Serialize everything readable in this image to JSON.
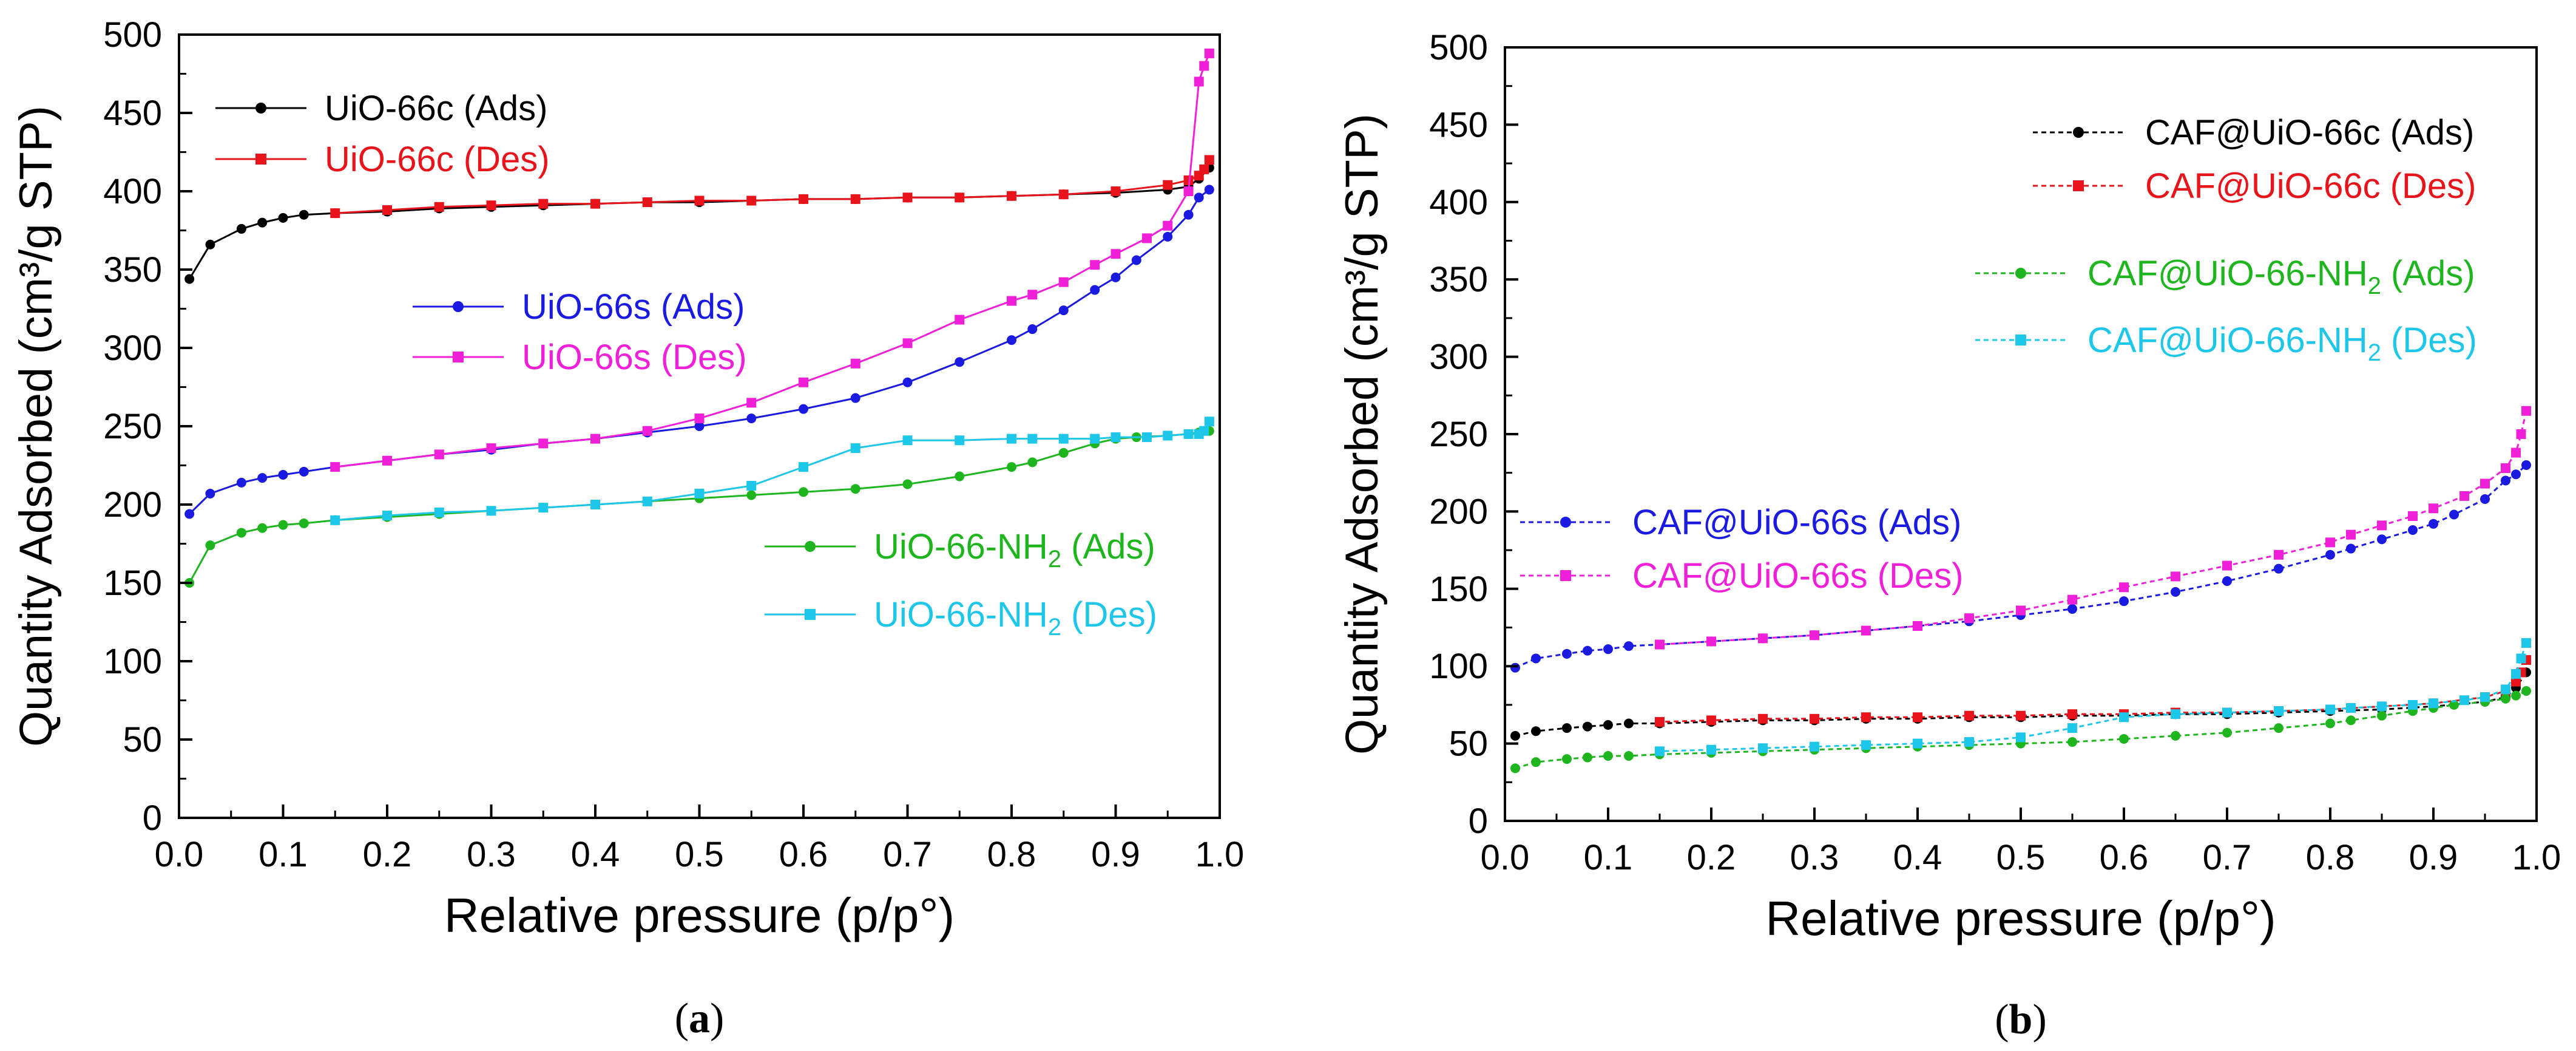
{
  "chart_data": [
    {
      "type": "line",
      "panel_label": "(a)",
      "panel_letter": "a",
      "xlabel": "Relative pressure (p/p°)",
      "ylabel": "Quantity Adsorbed (cm³/g STP)",
      "xlim": [
        0.0,
        1.0
      ],
      "ylim": [
        0,
        500
      ],
      "xticks": [
        "0.0",
        "0.1",
        "0.2",
        "0.3",
        "0.4",
        "0.5",
        "0.6",
        "0.7",
        "0.8",
        "0.9",
        "1.0"
      ],
      "yticks": [
        "0",
        "50",
        "100",
        "150",
        "200",
        "250",
        "300",
        "350",
        "400",
        "450",
        "500"
      ],
      "grid": false,
      "legend": "inline",
      "series": [
        {
          "name": "UiO-66c (Ads)",
          "color": "#000000",
          "marker": "circle",
          "line": "solid",
          "x": [
            0.01,
            0.03,
            0.06,
            0.08,
            0.1,
            0.12,
            0.15,
            0.2,
            0.25,
            0.3,
            0.35,
            0.4,
            0.45,
            0.5,
            0.55,
            0.6,
            0.65,
            0.7,
            0.75,
            0.8,
            0.85,
            0.9,
            0.95,
            0.97,
            0.98,
            0.99
          ],
          "y": [
            344,
            366,
            376,
            380,
            383,
            385,
            386,
            387,
            389,
            390,
            391,
            392,
            393,
            393,
            394,
            395,
            395,
            396,
            396,
            397,
            398,
            399,
            401,
            403,
            408,
            415
          ]
        },
        {
          "name": "UiO-66c (Des)",
          "color": "#e8141b",
          "marker": "square",
          "line": "solid",
          "x": [
            0.99,
            0.985,
            0.98,
            0.97,
            0.95,
            0.9,
            0.85,
            0.8,
            0.75,
            0.7,
            0.65,
            0.6,
            0.55,
            0.5,
            0.45,
            0.4,
            0.35,
            0.3,
            0.25,
            0.2,
            0.15
          ],
          "y": [
            420,
            414,
            410,
            407,
            404,
            400,
            398,
            397,
            396,
            396,
            395,
            395,
            394,
            394,
            393,
            392,
            392,
            391,
            390,
            388,
            386
          ]
        },
        {
          "name": "UiO-66s (Ads)",
          "color": "#1a1ae0",
          "marker": "circle",
          "line": "solid",
          "x": [
            0.01,
            0.03,
            0.06,
            0.08,
            0.1,
            0.12,
            0.15,
            0.2,
            0.25,
            0.3,
            0.35,
            0.4,
            0.45,
            0.5,
            0.55,
            0.6,
            0.65,
            0.7,
            0.75,
            0.8,
            0.82,
            0.85,
            0.88,
            0.9,
            0.92,
            0.95,
            0.97,
            0.98,
            0.99
          ],
          "y": [
            194,
            207,
            214,
            217,
            219,
            221,
            224,
            228,
            232,
            235,
            239,
            242,
            246,
            250,
            255,
            261,
            268,
            278,
            291,
            305,
            312,
            324,
            337,
            345,
            356,
            371,
            385,
            396,
            401
          ]
        },
        {
          "name": "UiO-66s (Des)",
          "color": "#f020d8",
          "marker": "square",
          "line": "solid",
          "x": [
            0.99,
            0.985,
            0.98,
            0.97,
            0.95,
            0.93,
            0.9,
            0.88,
            0.85,
            0.82,
            0.8,
            0.75,
            0.7,
            0.65,
            0.6,
            0.55,
            0.5,
            0.45,
            0.4,
            0.35,
            0.3,
            0.25,
            0.2,
            0.15
          ],
          "y": [
            488,
            480,
            470,
            400,
            378,
            370,
            360,
            353,
            342,
            334,
            330,
            318,
            303,
            290,
            278,
            265,
            255,
            247,
            242,
            239,
            236,
            232,
            228,
            224
          ]
        },
        {
          "name": "UiO-66-NH₂ (Ads)",
          "color": "#1fb51f",
          "marker": "circle",
          "line": "solid",
          "x": [
            0.01,
            0.03,
            0.06,
            0.08,
            0.1,
            0.12,
            0.15,
            0.2,
            0.25,
            0.3,
            0.35,
            0.4,
            0.45,
            0.5,
            0.55,
            0.6,
            0.65,
            0.7,
            0.75,
            0.8,
            0.82,
            0.85,
            0.88,
            0.9,
            0.92,
            0.95,
            0.97,
            0.98,
            0.99
          ],
          "y": [
            150,
            174,
            182,
            185,
            187,
            188,
            190,
            192,
            194,
            196,
            198,
            200,
            202,
            204,
            206,
            208,
            210,
            213,
            218,
            224,
            227,
            233,
            239,
            242,
            243,
            244,
            245,
            246,
            247
          ]
        },
        {
          "name": "UiO-66-NH₂ (Des)",
          "color": "#1ec6e8",
          "marker": "square",
          "line": "solid",
          "x": [
            0.99,
            0.985,
            0.98,
            0.97,
            0.95,
            0.93,
            0.9,
            0.88,
            0.85,
            0.82,
            0.8,
            0.75,
            0.7,
            0.65,
            0.6,
            0.55,
            0.5,
            0.45,
            0.4,
            0.35,
            0.3,
            0.25,
            0.2,
            0.15
          ],
          "y": [
            253,
            247,
            245,
            245,
            244,
            243,
            243,
            242,
            242,
            242,
            242,
            241,
            241,
            236,
            224,
            212,
            207,
            202,
            200,
            198,
            196,
            195,
            193,
            190
          ]
        }
      ],
      "legend_items": [
        {
          "label_main": "UiO-66c (Ads)",
          "label_sub": "",
          "label_tail": "",
          "color": "#000000",
          "marker": "circle",
          "text_color": "#000000"
        },
        {
          "label_main": "UiO-66c (Des)",
          "label_sub": "",
          "label_tail": "",
          "color": "#e8141b",
          "marker": "square",
          "text_color": "#e8141b"
        },
        {
          "label_main": "UiO-66s (Ads)",
          "label_sub": "",
          "label_tail": "",
          "color": "#1a1ae0",
          "marker": "circle",
          "text_color": "#1a1ae0"
        },
        {
          "label_main": "UiO-66s (Des)",
          "label_sub": "",
          "label_tail": "",
          "color": "#f020d8",
          "marker": "square",
          "text_color": "#f020d8"
        },
        {
          "label_main": "UiO-66-NH",
          "label_sub": "2",
          "label_tail": " (Ads)",
          "color": "#1fb51f",
          "marker": "circle",
          "text_color": "#1fb51f"
        },
        {
          "label_main": "UiO-66-NH",
          "label_sub": "2",
          "label_tail": " (Des)",
          "color": "#1ec6e8",
          "marker": "square",
          "text_color": "#1ec6e8"
        }
      ]
    },
    {
      "type": "line",
      "panel_label": "(b)",
      "panel_letter": "b",
      "xlabel": "Relative pressure (p/p°)",
      "ylabel": "Quantity Adsorbed (cm³/g STP)",
      "xlim": [
        0.0,
        1.0
      ],
      "ylim": [
        0,
        500
      ],
      "xticks": [
        "0.0",
        "0.1",
        "0.2",
        "0.3",
        "0.4",
        "0.5",
        "0.6",
        "0.7",
        "0.8",
        "0.9",
        "1.0"
      ],
      "yticks": [
        "0",
        "50",
        "100",
        "150",
        "200",
        "250",
        "300",
        "350",
        "400",
        "450",
        "500"
      ],
      "grid": false,
      "legend": "inline",
      "series": [
        {
          "name": "CAF@UiO-66c (Ads)",
          "color": "#000000",
          "marker": "circle",
          "line": "dashed",
          "x": [
            0.01,
            0.03,
            0.06,
            0.08,
            0.1,
            0.12,
            0.15,
            0.2,
            0.25,
            0.3,
            0.35,
            0.4,
            0.45,
            0.5,
            0.55,
            0.6,
            0.65,
            0.7,
            0.75,
            0.8,
            0.85,
            0.9,
            0.95,
            0.97,
            0.98,
            0.99
          ],
          "y": [
            55,
            58,
            60,
            61,
            62,
            63,
            63,
            64,
            65,
            65,
            66,
            66,
            67,
            67,
            68,
            68,
            69,
            69,
            70,
            71,
            72,
            74,
            77,
            80,
            86,
            96
          ]
        },
        {
          "name": "CAF@UiO-66c (Des)",
          "color": "#e8141b",
          "marker": "square",
          "line": "dashed",
          "x": [
            0.99,
            0.985,
            0.98,
            0.97,
            0.95,
            0.9,
            0.85,
            0.8,
            0.75,
            0.7,
            0.65,
            0.6,
            0.55,
            0.5,
            0.45,
            0.4,
            0.35,
            0.3,
            0.25,
            0.2,
            0.15
          ],
          "y": [
            104,
            96,
            90,
            84,
            80,
            76,
            74,
            72,
            71,
            70,
            70,
            69,
            69,
            68,
            68,
            67,
            67,
            66,
            66,
            65,
            64
          ]
        },
        {
          "name": "CAF@UiO-66s (Ads)",
          "color": "#1a1ae0",
          "marker": "circle",
          "line": "dashed",
          "x": [
            0.01,
            0.03,
            0.06,
            0.08,
            0.1,
            0.12,
            0.15,
            0.2,
            0.25,
            0.3,
            0.35,
            0.4,
            0.45,
            0.5,
            0.55,
            0.6,
            0.65,
            0.7,
            0.75,
            0.8,
            0.82,
            0.85,
            0.88,
            0.9,
            0.92,
            0.95,
            0.97,
            0.98,
            0.99
          ],
          "y": [
            99,
            105,
            108,
            110,
            111,
            113,
            114,
            116,
            118,
            120,
            123,
            126,
            129,
            133,
            137,
            142,
            148,
            155,
            163,
            172,
            176,
            182,
            188,
            192,
            198,
            208,
            220,
            224,
            230
          ]
        },
        {
          "name": "CAF@UiO-66s (Des)",
          "color": "#f020d8",
          "marker": "square",
          "line": "dashed",
          "x": [
            0.99,
            0.985,
            0.98,
            0.97,
            0.95,
            0.93,
            0.9,
            0.88,
            0.85,
            0.82,
            0.8,
            0.75,
            0.7,
            0.65,
            0.6,
            0.55,
            0.5,
            0.45,
            0.4,
            0.35,
            0.3,
            0.25,
            0.2,
            0.15
          ],
          "y": [
            265,
            250,
            238,
            228,
            218,
            210,
            202,
            197,
            191,
            185,
            180,
            172,
            165,
            158,
            151,
            143,
            136,
            131,
            126,
            123,
            120,
            118,
            116,
            114
          ]
        },
        {
          "name": "CAF@UiO-66-NH₂ (Ads)",
          "color": "#1fb51f",
          "marker": "circle",
          "line": "dashed",
          "x": [
            0.01,
            0.03,
            0.06,
            0.08,
            0.1,
            0.12,
            0.15,
            0.2,
            0.25,
            0.3,
            0.35,
            0.4,
            0.45,
            0.5,
            0.55,
            0.6,
            0.65,
            0.7,
            0.75,
            0.8,
            0.82,
            0.85,
            0.88,
            0.9,
            0.92,
            0.95,
            0.97,
            0.98,
            0.99
          ],
          "y": [
            34,
            38,
            40,
            41,
            42,
            42,
            43,
            44,
            45,
            46,
            47,
            48,
            49,
            50,
            51,
            53,
            55,
            57,
            60,
            63,
            65,
            68,
            71,
            73,
            75,
            77,
            79,
            81,
            84
          ]
        },
        {
          "name": "CAF@UiO-66-NH₂ (Des)",
          "color": "#1ec6e8",
          "marker": "square",
          "line": "dashed",
          "x": [
            0.99,
            0.985,
            0.98,
            0.97,
            0.95,
            0.93,
            0.9,
            0.88,
            0.85,
            0.82,
            0.8,
            0.75,
            0.7,
            0.65,
            0.6,
            0.55,
            0.5,
            0.45,
            0.4,
            0.35,
            0.3,
            0.25,
            0.2,
            0.15
          ],
          "y": [
            115,
            105,
            95,
            85,
            80,
            78,
            76,
            75,
            74,
            73,
            72,
            71,
            70,
            69,
            67,
            60,
            54,
            51,
            50,
            49,
            48,
            47,
            46,
            45
          ]
        }
      ],
      "legend_items": [
        {
          "label_main": "CAF@UiO-66c (Ads)",
          "label_sub": "",
          "label_tail": "",
          "color": "#000000",
          "marker": "circle",
          "text_color": "#000000"
        },
        {
          "label_main": "CAF@UiO-66c (Des)",
          "label_sub": "",
          "label_tail": "",
          "color": "#e8141b",
          "marker": "square",
          "text_color": "#e8141b"
        },
        {
          "label_main": "CAF@UiO-66-NH",
          "label_sub": "2",
          "label_tail": " (Ads)",
          "color": "#1fb51f",
          "marker": "circle",
          "text_color": "#1fb51f"
        },
        {
          "label_main": "CAF@UiO-66-NH",
          "label_sub": "2",
          "label_tail": " (Des)",
          "color": "#1ec6e8",
          "marker": "square",
          "text_color": "#1ec6e8"
        },
        {
          "label_main": "CAF@UiO-66s (Ads)",
          "label_sub": "",
          "label_tail": "",
          "color": "#1a1ae0",
          "marker": "circle",
          "text_color": "#1a1ae0"
        },
        {
          "label_main": "CAF@UiO-66s (Des)",
          "label_sub": "",
          "label_tail": "",
          "color": "#f020d8",
          "marker": "square",
          "text_color": "#f020d8"
        }
      ]
    }
  ]
}
